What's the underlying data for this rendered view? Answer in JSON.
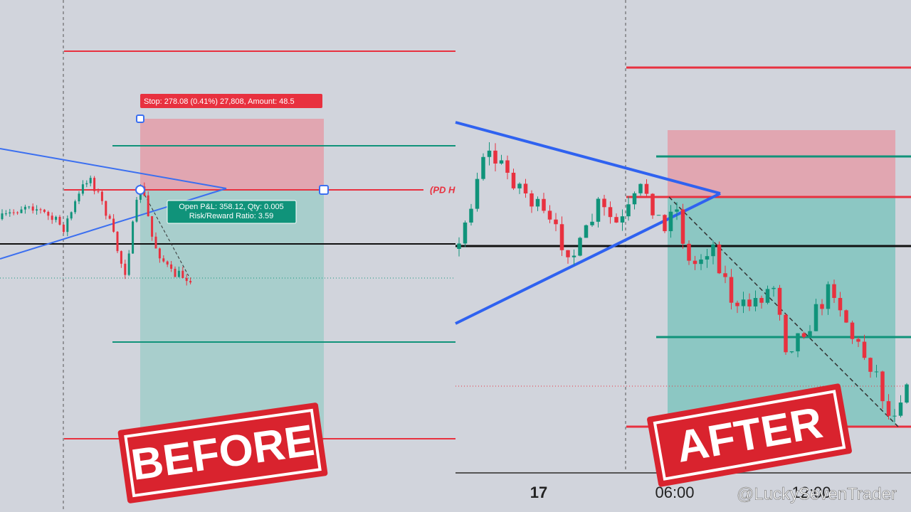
{
  "left_panel": {
    "stop_label": "Stop: 278.08 (0.41%) 27,808, Amount: 48.5",
    "level_label": "(PD H",
    "pnl_line1": "Open P&L: 358.12, Qty: 0.005",
    "pnl_line2": "Risk/Reward Ratio: 3.59",
    "stamp": "BEFORE"
  },
  "right_panel": {
    "stamp": "AFTER",
    "time_axis": [
      "17",
      "06:00",
      "12:00"
    ]
  },
  "watermark": "@LuckySevenTrader"
}
